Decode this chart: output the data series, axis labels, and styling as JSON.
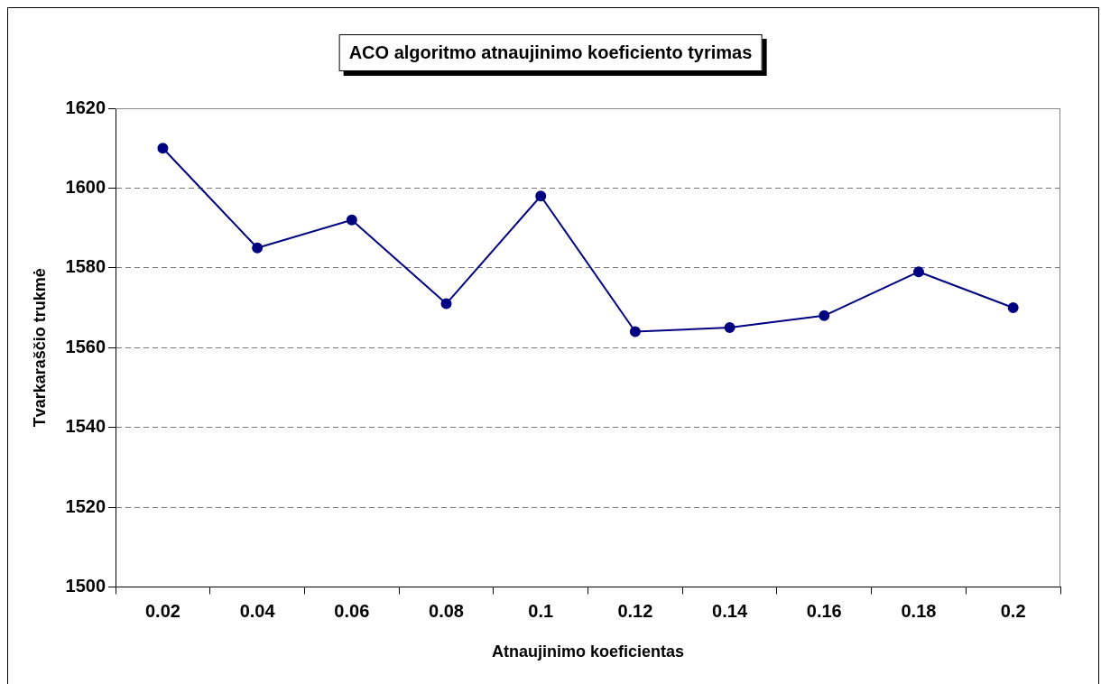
{
  "chart_data": {
    "type": "line",
    "title": "ACO algoritmo atnaujinimo koeficiento tyrimas",
    "xlabel": "Atnaujinimo koeficientas",
    "ylabel": "Tvarkaraščio trukmė",
    "categories": [
      "0.02",
      "0.04",
      "0.06",
      "0.08",
      "0.1",
      "0.12",
      "0.14",
      "0.16",
      "0.18",
      "0.2"
    ],
    "series": [
      {
        "color": "#000080",
        "values": [
          1610,
          1585,
          1592,
          1571,
          1598,
          1564,
          1565,
          1568,
          1579,
          1570
        ]
      }
    ],
    "ylim": [
      1500,
      1620
    ],
    "yticks": [
      1500,
      1520,
      1540,
      1560,
      1580,
      1600,
      1620
    ],
    "grid": "y",
    "marker": "circle",
    "line_style": "solid",
    "legend": false
  }
}
